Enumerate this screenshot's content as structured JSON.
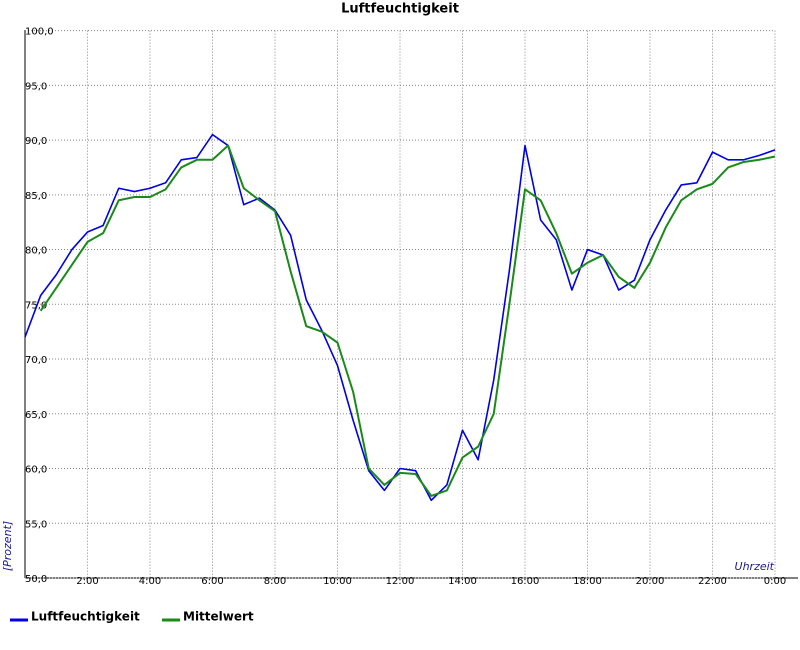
{
  "chart_data": {
    "type": "line",
    "title": "Luftfeuchtigkeit",
    "x_label": "Uhrzeit",
    "y_label": "[Prozent]",
    "x": [
      0,
      0.5,
      1,
      1.5,
      2,
      2.5,
      3,
      3.5,
      4,
      4.5,
      5,
      5.5,
      6,
      6.5,
      7,
      7.5,
      8,
      8.5,
      9,
      9.5,
      10,
      10.5,
      11,
      11.5,
      12,
      12.5,
      13,
      13.5,
      14,
      14.5,
      15,
      15.5,
      16,
      16.5,
      17,
      17.5,
      18,
      18.5,
      19,
      19.5,
      20,
      20.5,
      21,
      21.5,
      22,
      22.5,
      23,
      23.5,
      24
    ],
    "series": [
      {
        "name": "Luftfeuchtigkeit",
        "color": "#0000e6",
        "values": [
          72.0,
          75.8,
          77.7,
          80.0,
          81.6,
          82.2,
          85.6,
          85.3,
          85.6,
          86.1,
          88.2,
          88.4,
          90.5,
          89.5,
          84.1,
          84.7,
          83.6,
          81.3,
          75.4,
          72.6,
          69.4,
          64.4,
          59.8,
          58.0,
          60.0,
          59.8,
          57.1,
          58.5,
          63.5,
          60.8,
          68.1,
          78.1,
          89.5,
          82.7,
          80.9,
          76.3,
          80.0,
          79.5,
          76.3,
          77.2,
          80.9,
          83.6,
          85.9,
          86.1,
          88.9,
          88.2,
          88.2,
          88.6,
          89.1
        ]
      },
      {
        "name": "Mittelwert",
        "color": "#1a8a1a",
        "values": [
          null,
          74.4,
          76.5,
          78.6,
          80.7,
          81.5,
          84.5,
          84.8,
          84.8,
          85.5,
          87.5,
          88.2,
          88.2,
          89.5,
          85.6,
          84.5,
          83.5,
          78.0,
          73.0,
          72.5,
          71.5,
          67.0,
          60.0,
          58.5,
          59.6,
          59.5,
          57.5,
          58.0,
          61.0,
          62.0,
          65.0,
          75.0,
          85.5,
          84.5,
          81.5,
          77.8,
          78.8,
          79.5,
          77.5,
          76.5,
          78.8,
          82.0,
          84.5,
          85.5,
          86.0,
          87.5,
          88.0,
          88.2,
          88.5
        ]
      }
    ],
    "xlim": [
      0,
      24
    ],
    "xticks": [
      {
        "value": 2,
        "label": "2:00"
      },
      {
        "value": 4,
        "label": "4:00"
      },
      {
        "value": 6,
        "label": "6:00"
      },
      {
        "value": 8,
        "label": "8:00"
      },
      {
        "value": 10,
        "label": "10:00"
      },
      {
        "value": 12,
        "label": "12:00"
      },
      {
        "value": 14,
        "label": "14:00"
      },
      {
        "value": 16,
        "label": "16:00"
      },
      {
        "value": 18,
        "label": "18:00"
      },
      {
        "value": 20,
        "label": "20:00"
      },
      {
        "value": 22,
        "label": "22:00"
      },
      {
        "value": 24,
        "label": "0:00"
      }
    ],
    "ylim": [
      50,
      100
    ],
    "yticks": [
      {
        "value": 50,
        "label": "50,0"
      },
      {
        "value": 55,
        "label": "55,0"
      },
      {
        "value": 60,
        "label": "60,0"
      },
      {
        "value": 65,
        "label": "65,0"
      },
      {
        "value": 70,
        "label": "70,0"
      },
      {
        "value": 75,
        "label": "75,0"
      },
      {
        "value": 80,
        "label": "80,0"
      },
      {
        "value": 85,
        "label": "85,0"
      },
      {
        "value": 90,
        "label": "90,0"
      },
      {
        "value": 95,
        "label": "95,0"
      },
      {
        "value": 100,
        "label": "100,0"
      }
    ],
    "grid": true
  }
}
